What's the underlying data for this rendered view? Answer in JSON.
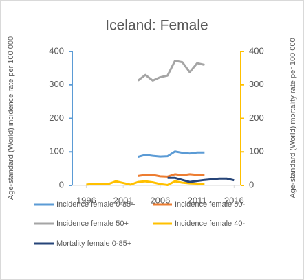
{
  "chart_data": {
    "type": "line",
    "title": "Iceland: Female",
    "y_label": "Age-standard (World) incidence rate per 100 000",
    "y2_label": "Age-standard (World) mortality rate per 100 000",
    "x": [
      1996,
      1997,
      1998,
      1999,
      2000,
      2001,
      2002,
      2003,
      2004,
      2005,
      2006,
      2007,
      2008,
      2009,
      2010,
      2011,
      2012,
      2013,
      2014,
      2015,
      2016
    ],
    "xlim": [
      1994.1,
      2016.9
    ],
    "xticks": [
      1996,
      2001,
      2006,
      2011,
      2016
    ],
    "ylim": [
      0,
      400
    ],
    "yticks": [
      0,
      100,
      200,
      300,
      400
    ],
    "y2lim": [
      0,
      400
    ],
    "y2ticks": [
      0,
      100,
      200,
      300,
      400
    ],
    "y_axis_color": "#5b9bd5",
    "y2_axis_color": "#ffc000",
    "series": [
      {
        "name": "Incidence female 0-85+",
        "color": "#5b9bd5",
        "values": [
          null,
          null,
          null,
          null,
          null,
          null,
          null,
          85,
          91,
          88,
          86,
          87,
          101,
          97,
          95,
          98,
          98,
          null,
          null,
          null,
          null
        ]
      },
      {
        "name": "Incidence female 50-",
        "color": "#ed7d31",
        "values": [
          null,
          null,
          null,
          null,
          null,
          null,
          null,
          28,
          31,
          31,
          27,
          26,
          33,
          30,
          33,
          31,
          31,
          null,
          null,
          null,
          null
        ]
      },
      {
        "name": "Incidence female 50+",
        "color": "#a5a5a5",
        "values": [
          null,
          null,
          null,
          null,
          null,
          null,
          null,
          313,
          330,
          313,
          323,
          328,
          372,
          368,
          338,
          365,
          360,
          null,
          null,
          null,
          null
        ]
      },
      {
        "name": "Incidence female 40-",
        "color": "#ffc000",
        "values": [
          2,
          5,
          5,
          4,
          12,
          7,
          2,
          10,
          12,
          9,
          4,
          1,
          12,
          8,
          6,
          5,
          5,
          null,
          null,
          null,
          null
        ]
      },
      {
        "name": "Mortality female 0-85+",
        "color": "#264478",
        "axis": "y2",
        "values": [
          null,
          null,
          null,
          null,
          null,
          null,
          null,
          null,
          null,
          null,
          null,
          22,
          22,
          16,
          10,
          13,
          16,
          18,
          20,
          20,
          15
        ]
      }
    ]
  }
}
